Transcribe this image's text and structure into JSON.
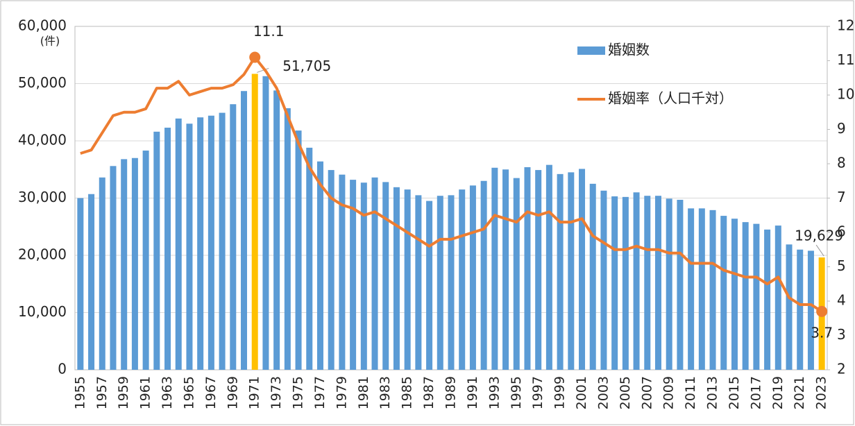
{
  "chart_data": {
    "type": "bar-line",
    "unit_label": "(件)",
    "categories": [
      "1955",
      null,
      "1957",
      null,
      "1959",
      null,
      "1961",
      null,
      "1963",
      null,
      "1965",
      null,
      "1967",
      null,
      "1969",
      null,
      "1971",
      null,
      "1973",
      null,
      "1975",
      null,
      "1977",
      null,
      "1979",
      null,
      "1981",
      null,
      "1983",
      null,
      "1985",
      null,
      "1987",
      null,
      "1989",
      null,
      "1991",
      null,
      "1993",
      null,
      "1995",
      null,
      "1997",
      null,
      "1999",
      null,
      "2001",
      null,
      "2003",
      null,
      "2005",
      null,
      "2007",
      null,
      "2009",
      null,
      "2011",
      null,
      "2013",
      null,
      "2015",
      null,
      "2017",
      null,
      "2019",
      null,
      "2021",
      null,
      "2023"
    ],
    "series": [
      {
        "name": "婚姻数",
        "type": "bar",
        "color": "#5b9bd5",
        "highlight_color": "#ffc000",
        "values": [
          30000,
          30700,
          33600,
          35600,
          36800,
          37000,
          38300,
          41600,
          42300,
          43900,
          43000,
          44100,
          44400,
          44900,
          46400,
          48700,
          51705,
          51300,
          48800,
          45700,
          41800,
          38800,
          36400,
          34900,
          34100,
          33200,
          32700,
          33600,
          32800,
          31900,
          31500,
          30500,
          29500,
          30400,
          30500,
          31500,
          32200,
          33000,
          35300,
          35000,
          33500,
          35400,
          34900,
          35800,
          34200,
          34500,
          35100,
          32500,
          31300,
          30300,
          30200,
          31000,
          30400,
          30400,
          29900,
          29700,
          28200,
          28200,
          27900,
          26900,
          26400,
          25800,
          25500,
          24500,
          25200,
          21900,
          21000,
          20800,
          19629
        ],
        "value_labels": [
          null,
          null,
          null,
          null,
          null,
          null,
          null,
          null,
          null,
          null,
          null,
          null,
          null,
          null,
          null,
          null,
          "51,705",
          null,
          null,
          null,
          null,
          null,
          null,
          null,
          null,
          null,
          null,
          null,
          null,
          null,
          null,
          null,
          null,
          null,
          null,
          null,
          null,
          null,
          null,
          null,
          null,
          null,
          null,
          null,
          null,
          null,
          null,
          null,
          null,
          null,
          null,
          null,
          null,
          null,
          null,
          null,
          null,
          null,
          null,
          null,
          null,
          null,
          null,
          null,
          null,
          null,
          null,
          null,
          "19,629"
        ]
      },
      {
        "name": "婚姻率（人口千対）",
        "type": "line",
        "axis": "y2",
        "color": "#ed7d31",
        "values": [
          8.3,
          8.4,
          8.9,
          9.4,
          9.5,
          9.5,
          9.6,
          10.2,
          10.2,
          10.4,
          10.0,
          10.1,
          10.2,
          10.2,
          10.3,
          10.6,
          11.1,
          10.7,
          10.2,
          9.4,
          8.6,
          7.9,
          7.4,
          7.0,
          6.8,
          6.7,
          6.5,
          6.6,
          6.4,
          6.2,
          6.0,
          5.8,
          5.6,
          5.8,
          5.8,
          5.9,
          6.0,
          6.1,
          6.5,
          6.4,
          6.3,
          6.6,
          6.5,
          6.6,
          6.3,
          6.3,
          6.4,
          5.9,
          5.7,
          5.5,
          5.5,
          5.6,
          5.5,
          5.5,
          5.4,
          5.4,
          5.1,
          5.1,
          5.1,
          4.9,
          4.8,
          4.7,
          4.7,
          4.5,
          4.7,
          4.1,
          3.9,
          3.9,
          3.7
        ],
        "value_labels": [
          null,
          null,
          null,
          null,
          null,
          null,
          null,
          null,
          null,
          null,
          null,
          null,
          null,
          null,
          null,
          null,
          "11.1",
          null,
          null,
          null,
          null,
          null,
          null,
          null,
          null,
          null,
          null,
          null,
          null,
          null,
          null,
          null,
          null,
          null,
          null,
          null,
          null,
          null,
          null,
          null,
          null,
          null,
          null,
          null,
          null,
          null,
          null,
          null,
          null,
          null,
          null,
          null,
          null,
          null,
          null,
          null,
          null,
          null,
          null,
          null,
          null,
          null,
          null,
          null,
          null,
          null,
          null,
          null,
          "3.7"
        ]
      }
    ],
    "ylim": [
      0,
      60000
    ],
    "yticks": [
      0,
      {
        "value": 10000,
        "label": "10,000"
      },
      {
        "value": 20000,
        "label": "20,000"
      },
      {
        "value": 30000,
        "label": "30,000"
      },
      {
        "value": 40000,
        "label": "40,000"
      },
      {
        "value": 50000,
        "label": "50,000"
      },
      {
        "value": 60000,
        "label": "60,000"
      }
    ],
    "y2lim": [
      2,
      12
    ],
    "y2ticks": [
      2,
      3,
      4,
      5,
      6,
      7,
      8,
      9,
      10,
      11,
      12
    ],
    "grid": true,
    "legend": "top-right"
  }
}
